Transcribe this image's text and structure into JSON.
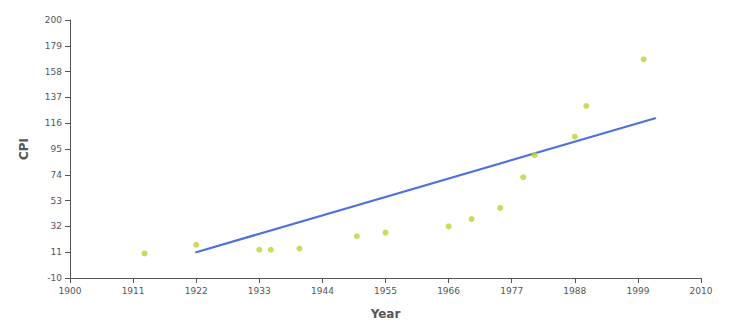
{
  "chart_data": {
    "type": "scatter",
    "xlabel": "Year",
    "ylabel": "CPI",
    "series": [
      {
        "type": "line",
        "x": [
          1922,
          2002
        ],
        "values": [
          11,
          120
        ]
      },
      {
        "type": "scatter",
        "x": [
          1913,
          1922,
          1933,
          1935,
          1940,
          1950,
          1955,
          1966,
          1970,
          1975,
          1979,
          1981,
          1988,
          1990,
          2000
        ],
        "values": [
          10,
          17,
          13,
          13,
          14,
          24,
          27,
          32,
          38,
          47,
          72,
          90,
          105,
          130,
          168
        ]
      }
    ],
    "xlim": [
      1900,
      2010
    ],
    "ylim": [
      -10,
      200
    ],
    "xticks": [
      1900,
      1911,
      1922,
      1933,
      1944,
      1955,
      1966,
      1977,
      1988,
      1999,
      2010
    ],
    "yticks": [
      -10,
      11,
      32,
      53,
      74,
      95,
      116,
      137,
      158,
      179,
      200
    ],
    "grid": false
  }
}
